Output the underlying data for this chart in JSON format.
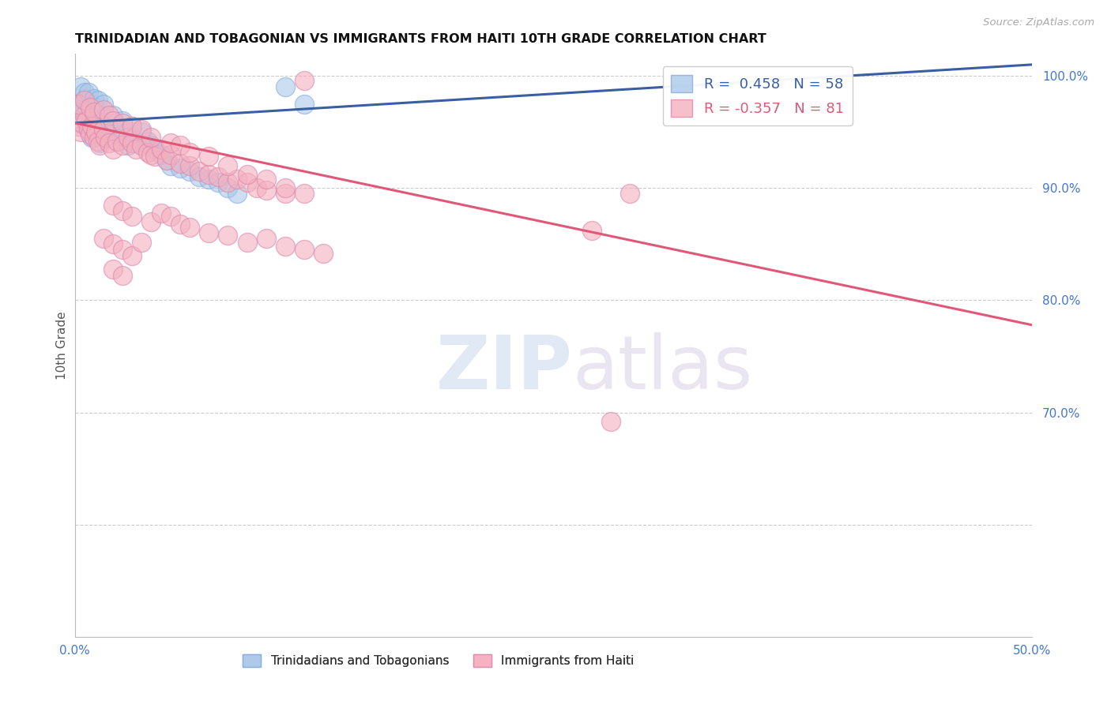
{
  "title": "TRINIDADIAN AND TOBAGONIAN VS IMMIGRANTS FROM HAITI 10TH GRADE CORRELATION CHART",
  "source": "Source: ZipAtlas.com",
  "ylabel": "10th Grade",
  "xmin": 0.0,
  "xmax": 0.5,
  "ymin": 0.5,
  "ymax": 1.02,
  "watermark": "ZIPatlas",
  "blue_scatter": [
    [
      0.001,
      0.972
    ],
    [
      0.002,
      0.968
    ],
    [
      0.002,
      0.96
    ],
    [
      0.003,
      0.975
    ],
    [
      0.003,
      0.958
    ],
    [
      0.004,
      0.97
    ],
    [
      0.004,
      0.962
    ],
    [
      0.005,
      0.98
    ],
    [
      0.005,
      0.965
    ],
    [
      0.006,
      0.968
    ],
    [
      0.006,
      0.955
    ],
    [
      0.007,
      0.975
    ],
    [
      0.007,
      0.96
    ],
    [
      0.008,
      0.962
    ],
    [
      0.008,
      0.95
    ],
    [
      0.009,
      0.958
    ],
    [
      0.009,
      0.945
    ],
    [
      0.01,
      0.972
    ],
    [
      0.01,
      0.955
    ],
    [
      0.011,
      0.948
    ],
    [
      0.012,
      0.965
    ],
    [
      0.012,
      0.95
    ],
    [
      0.013,
      0.96
    ],
    [
      0.013,
      0.94
    ],
    [
      0.015,
      0.955
    ],
    [
      0.016,
      0.945
    ],
    [
      0.018,
      0.948
    ],
    [
      0.02,
      0.952
    ],
    [
      0.022,
      0.942
    ],
    [
      0.025,
      0.948
    ],
    [
      0.028,
      0.938
    ],
    [
      0.03,
      0.945
    ],
    [
      0.032,
      0.94
    ],
    [
      0.035,
      0.95
    ],
    [
      0.038,
      0.942
    ],
    [
      0.04,
      0.938
    ],
    [
      0.042,
      0.935
    ],
    [
      0.045,
      0.93
    ],
    [
      0.048,
      0.925
    ],
    [
      0.05,
      0.92
    ],
    [
      0.055,
      0.918
    ],
    [
      0.06,
      0.915
    ],
    [
      0.065,
      0.91
    ],
    [
      0.003,
      0.99
    ],
    [
      0.005,
      0.985
    ],
    [
      0.007,
      0.985
    ],
    [
      0.01,
      0.98
    ],
    [
      0.012,
      0.978
    ],
    [
      0.015,
      0.975
    ],
    [
      0.02,
      0.965
    ],
    [
      0.025,
      0.96
    ],
    [
      0.03,
      0.955
    ],
    [
      0.07,
      0.908
    ],
    [
      0.075,
      0.905
    ],
    [
      0.08,
      0.9
    ],
    [
      0.085,
      0.895
    ],
    [
      0.11,
      0.99
    ],
    [
      0.12,
      0.975
    ]
  ],
  "pink_scatter": [
    [
      0.001,
      0.96
    ],
    [
      0.002,
      0.955
    ],
    [
      0.003,
      0.95
    ],
    [
      0.004,
      0.958
    ],
    [
      0.005,
      0.965
    ],
    [
      0.006,
      0.96
    ],
    [
      0.007,
      0.952
    ],
    [
      0.008,
      0.948
    ],
    [
      0.009,
      0.955
    ],
    [
      0.01,
      0.945
    ],
    [
      0.011,
      0.95
    ],
    [
      0.012,
      0.942
    ],
    [
      0.013,
      0.938
    ],
    [
      0.015,
      0.952
    ],
    [
      0.016,
      0.945
    ],
    [
      0.018,
      0.94
    ],
    [
      0.02,
      0.935
    ],
    [
      0.022,
      0.942
    ],
    [
      0.025,
      0.938
    ],
    [
      0.028,
      0.945
    ],
    [
      0.03,
      0.94
    ],
    [
      0.032,
      0.935
    ],
    [
      0.035,
      0.938
    ],
    [
      0.038,
      0.932
    ],
    [
      0.04,
      0.93
    ],
    [
      0.042,
      0.928
    ],
    [
      0.045,
      0.935
    ],
    [
      0.048,
      0.925
    ],
    [
      0.05,
      0.93
    ],
    [
      0.055,
      0.922
    ],
    [
      0.06,
      0.92
    ],
    [
      0.065,
      0.915
    ],
    [
      0.07,
      0.912
    ],
    [
      0.075,
      0.91
    ],
    [
      0.08,
      0.905
    ],
    [
      0.085,
      0.908
    ],
    [
      0.09,
      0.905
    ],
    [
      0.095,
      0.9
    ],
    [
      0.1,
      0.898
    ],
    [
      0.11,
      0.895
    ],
    [
      0.002,
      0.975
    ],
    [
      0.005,
      0.978
    ],
    [
      0.008,
      0.972
    ],
    [
      0.01,
      0.968
    ],
    [
      0.015,
      0.97
    ],
    [
      0.018,
      0.965
    ],
    [
      0.02,
      0.96
    ],
    [
      0.025,
      0.958
    ],
    [
      0.03,
      0.955
    ],
    [
      0.035,
      0.952
    ],
    [
      0.04,
      0.945
    ],
    [
      0.05,
      0.94
    ],
    [
      0.055,
      0.938
    ],
    [
      0.06,
      0.932
    ],
    [
      0.07,
      0.928
    ],
    [
      0.08,
      0.92
    ],
    [
      0.09,
      0.912
    ],
    [
      0.1,
      0.908
    ],
    [
      0.11,
      0.9
    ],
    [
      0.12,
      0.895
    ],
    [
      0.02,
      0.885
    ],
    [
      0.025,
      0.88
    ],
    [
      0.03,
      0.875
    ],
    [
      0.04,
      0.87
    ],
    [
      0.045,
      0.878
    ],
    [
      0.05,
      0.875
    ],
    [
      0.055,
      0.868
    ],
    [
      0.06,
      0.865
    ],
    [
      0.07,
      0.86
    ],
    [
      0.08,
      0.858
    ],
    [
      0.09,
      0.852
    ],
    [
      0.1,
      0.855
    ],
    [
      0.11,
      0.848
    ],
    [
      0.12,
      0.845
    ],
    [
      0.13,
      0.842
    ],
    [
      0.015,
      0.855
    ],
    [
      0.02,
      0.85
    ],
    [
      0.025,
      0.845
    ],
    [
      0.03,
      0.84
    ],
    [
      0.035,
      0.852
    ],
    [
      0.02,
      0.828
    ],
    [
      0.025,
      0.822
    ],
    [
      0.12,
      0.996
    ],
    [
      0.27,
      0.862
    ],
    [
      0.29,
      0.895
    ],
    [
      0.28,
      0.692
    ]
  ],
  "blue_line_x": [
    0.0,
    0.5
  ],
  "blue_line_y": [
    0.958,
    1.01
  ],
  "pink_line_x": [
    0.0,
    0.5
  ],
  "pink_line_y": [
    0.958,
    0.778
  ],
  "blue_color": "#aac8e8",
  "pink_color": "#f4b0c0",
  "blue_line_color": "#3a5fa0",
  "pink_line_color": "#e05878",
  "background_color": "#ffffff",
  "grid_color": "#cccccc",
  "axis_label_color": "#4477cc",
  "title_color": "#111111",
  "ytick_positions": [
    0.5,
    0.6,
    0.7,
    0.8,
    0.9,
    1.0
  ],
  "ytick_labels": [
    "",
    "",
    "70.0%",
    "80.0%",
    "90.0%",
    "100.0%"
  ],
  "xtick_positions": [
    0.0,
    0.1,
    0.2,
    0.3,
    0.4,
    0.5
  ],
  "xtick_labels": [
    "0.0%",
    "",
    "",
    "",
    "",
    "50.0%"
  ]
}
